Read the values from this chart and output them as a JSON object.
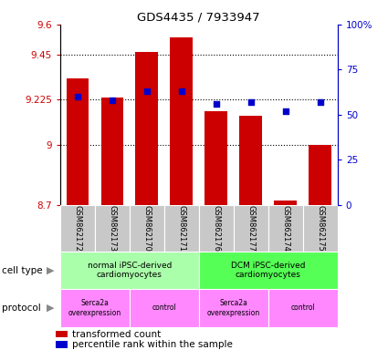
{
  "title": "GDS4435 / 7933947",
  "samples": [
    "GSM862172",
    "GSM862173",
    "GSM862170",
    "GSM862171",
    "GSM862176",
    "GSM862177",
    "GSM862174",
    "GSM862175"
  ],
  "transformed_counts": [
    9.33,
    9.235,
    9.465,
    9.535,
    9.165,
    9.145,
    8.72,
    9.0
  ],
  "percentile_ranks": [
    60,
    58,
    63,
    63,
    56,
    57,
    52,
    57
  ],
  "ylim_left": [
    8.7,
    9.6
  ],
  "yticks_left": [
    8.7,
    9.0,
    9.225,
    9.45,
    9.6
  ],
  "ytick_labels_left": [
    "8.7",
    "9",
    "9.225",
    "9.45",
    "9.6"
  ],
  "ylim_right": [
    0,
    100
  ],
  "yticks_right": [
    0,
    25,
    50,
    75,
    100
  ],
  "ytick_labels_right": [
    "0",
    "25",
    "50",
    "75",
    "100%"
  ],
  "bar_color": "#cc0000",
  "dot_color": "#0000cc",
  "bar_width": 0.65,
  "cell_type_groups": [
    {
      "label": "normal iPSC-derived\ncardiomyocytes",
      "start": 0,
      "end": 3,
      "color": "#aaffaa"
    },
    {
      "label": "DCM iPSC-derived\ncardiomyocytes",
      "start": 4,
      "end": 7,
      "color": "#55ff55"
    }
  ],
  "protocol_groups": [
    {
      "label": "Serca2a\noverexpression",
      "start": 0,
      "end": 1,
      "color": "#ff88ff"
    },
    {
      "label": "control",
      "start": 2,
      "end": 3,
      "color": "#ff88ff"
    },
    {
      "label": "Serca2a\noverexpression",
      "start": 4,
      "end": 5,
      "color": "#ff88ff"
    },
    {
      "label": "control",
      "start": 6,
      "end": 7,
      "color": "#ff88ff"
    }
  ],
  "cell_type_label": "cell type",
  "protocol_label": "protocol",
  "legend_bar_label": "transformed count",
  "legend_dot_label": "percentile rank within the sample",
  "bg_color": "#ffffff",
  "sample_bg_color": "#c8c8c8",
  "left_axis_color": "#cc0000",
  "right_axis_color": "#0000cc",
  "grid_yticks": [
    9.0,
    9.225,
    9.45
  ]
}
